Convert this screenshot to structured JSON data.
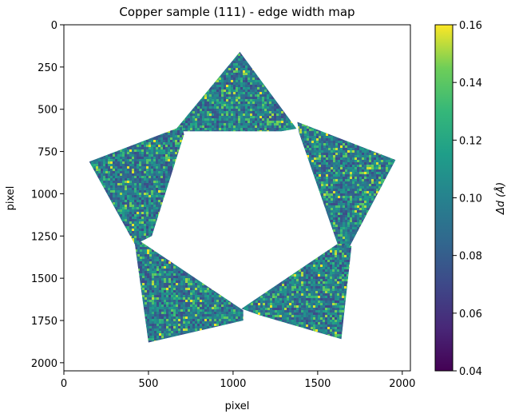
{
  "chart_data": {
    "type": "heatmap",
    "title": "Copper sample (111) - edge width map",
    "xlabel": "pixel",
    "ylabel": "pixel",
    "xlim": [
      0,
      2048
    ],
    "ylim": [
      2048,
      0
    ],
    "xticks": [
      0,
      500,
      1000,
      1500,
      2000
    ],
    "yticks": [
      0,
      250,
      500,
      750,
      1000,
      1250,
      1500,
      1750,
      2000
    ],
    "colorbar": {
      "label": "Δd (Å)",
      "range": [
        0.04,
        0.16
      ],
      "ticks": [
        0.04,
        0.06,
        0.08,
        0.1,
        0.12,
        0.14,
        0.16
      ],
      "colormap": "viridis"
    },
    "value_distribution": {
      "typical": 0.09,
      "min": 0.06,
      "max": 0.16
    },
    "regions": [
      {
        "name": "top",
        "polygon": [
          [
            1040,
            160
          ],
          [
            1375,
            615
          ],
          [
            1285,
            630
          ],
          [
            700,
            630
          ],
          [
            665,
            615
          ]
        ]
      },
      {
        "name": "right",
        "polygon": [
          [
            1380,
            575
          ],
          [
            1960,
            800
          ],
          [
            1690,
            1310
          ],
          [
            1620,
            1305
          ],
          [
            1390,
            640
          ]
        ]
      },
      {
        "name": "lower-right",
        "polygon": [
          [
            1620,
            1295
          ],
          [
            1700,
            1310
          ],
          [
            1640,
            1860
          ],
          [
            1160,
            1720
          ],
          [
            1050,
            1680
          ]
        ]
      },
      {
        "name": "lower-left",
        "polygon": [
          [
            420,
            1260
          ],
          [
            1060,
            1690
          ],
          [
            1060,
            1750
          ],
          [
            500,
            1880
          ],
          [
            420,
            1300
          ]
        ]
      },
      {
        "name": "left",
        "polygon": [
          [
            150,
            810
          ],
          [
            700,
            600
          ],
          [
            710,
            650
          ],
          [
            520,
            1250
          ],
          [
            420,
            1300
          ]
        ]
      }
    ]
  }
}
